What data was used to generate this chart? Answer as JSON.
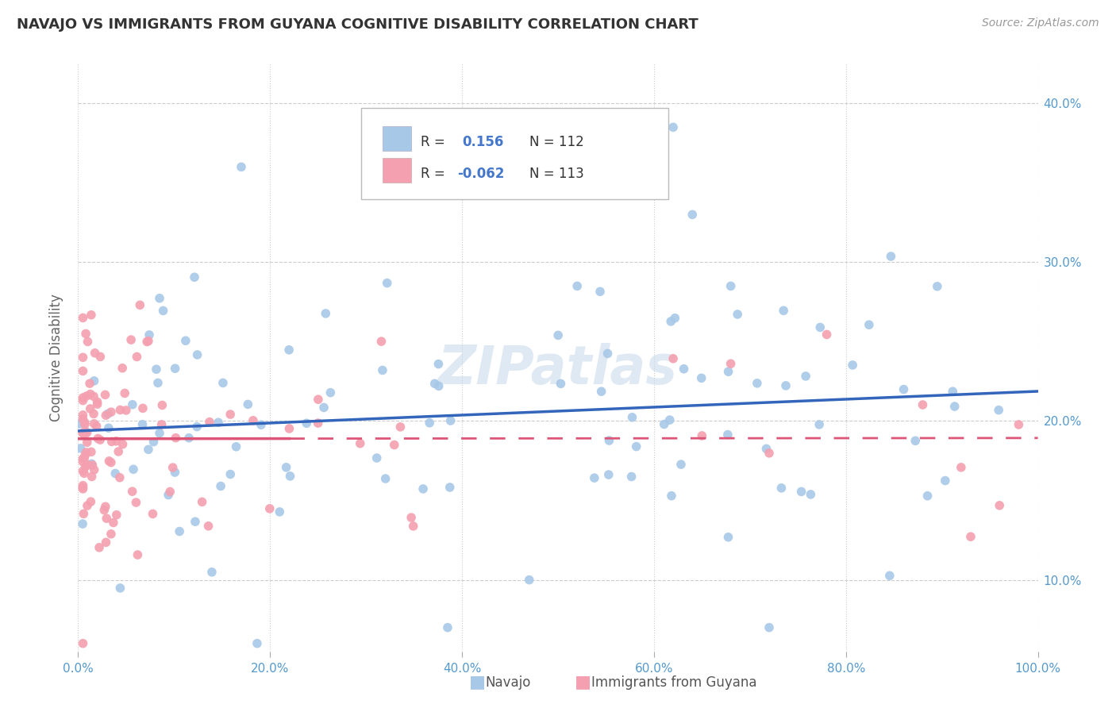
{
  "title": "NAVAJO VS IMMIGRANTS FROM GUYANA COGNITIVE DISABILITY CORRELATION CHART",
  "source": "Source: ZipAtlas.com",
  "ylabel": "Cognitive Disability",
  "r_navajo": 0.156,
  "n_navajo": 112,
  "r_guyana": -0.062,
  "n_guyana": 113,
  "xlim": [
    0.0,
    1.0
  ],
  "ylim": [
    0.055,
    0.425
  ],
  "yticks": [
    0.1,
    0.2,
    0.3,
    0.4
  ],
  "xticks": [
    0.0,
    0.2,
    0.4,
    0.6,
    0.8,
    1.0
  ],
  "xtick_labels": [
    "0.0%",
    "20.0%",
    "40.0%",
    "60.0%",
    "80.0%",
    "100.0%"
  ],
  "ytick_labels": [
    "10.0%",
    "20.0%",
    "30.0%",
    "40.0%"
  ],
  "color_navajo": "#a8c8e8",
  "color_guyana": "#f4a0b0",
  "line_navajo": "#3366bb",
  "line_guyana": "#dd5577",
  "background": "#ffffff",
  "grid_color": "#cccccc",
  "watermark": "ZIPatlas",
  "title_color": "#333333",
  "axis_tick_color": "#5599cc",
  "legend_r_color": "#4477cc",
  "legend_text_color": "#333333"
}
